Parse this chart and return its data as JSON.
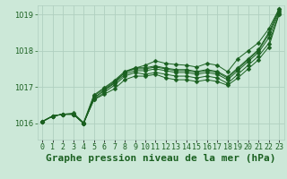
{
  "background_color": "#cce8d8",
  "grid_color": "#b0cfc0",
  "line_color": "#1a6020",
  "xlabel": "Graphe pression niveau de la mer (hPa)",
  "ylim": [
    1015.55,
    1019.25
  ],
  "xlim": [
    -0.5,
    23.5
  ],
  "yticks": [
    1016,
    1017,
    1018,
    1019
  ],
  "xticks": [
    0,
    1,
    2,
    3,
    4,
    5,
    6,
    7,
    8,
    9,
    10,
    11,
    12,
    13,
    14,
    15,
    16,
    17,
    18,
    19,
    20,
    21,
    22,
    23
  ],
  "series": [
    [
      1016.05,
      1016.2,
      1016.25,
      1016.25,
      1016.0,
      1016.65,
      1016.8,
      1016.95,
      1017.2,
      1017.3,
      1017.3,
      1017.35,
      1017.25,
      1017.2,
      1017.2,
      1017.15,
      1017.2,
      1017.15,
      1017.05,
      1017.25,
      1017.5,
      1017.75,
      1018.1,
      1019.0
    ],
    [
      1016.05,
      1016.2,
      1016.25,
      1016.25,
      1016.0,
      1016.65,
      1016.85,
      1017.05,
      1017.3,
      1017.4,
      1017.35,
      1017.4,
      1017.35,
      1017.3,
      1017.3,
      1017.25,
      1017.3,
      1017.25,
      1017.1,
      1017.35,
      1017.6,
      1017.85,
      1018.2,
      1019.0
    ],
    [
      1016.05,
      1016.2,
      1016.25,
      1016.25,
      1016.0,
      1016.7,
      1016.9,
      1017.1,
      1017.35,
      1017.45,
      1017.45,
      1017.5,
      1017.45,
      1017.4,
      1017.4,
      1017.35,
      1017.4,
      1017.35,
      1017.2,
      1017.45,
      1017.7,
      1017.95,
      1018.35,
      1019.05
    ],
    [
      1016.05,
      1016.2,
      1016.25,
      1016.25,
      1016.0,
      1016.75,
      1016.95,
      1017.15,
      1017.4,
      1017.5,
      1017.5,
      1017.55,
      1017.5,
      1017.45,
      1017.45,
      1017.4,
      1017.45,
      1017.4,
      1017.25,
      1017.5,
      1017.75,
      1018.0,
      1018.45,
      1019.1
    ],
    [
      1016.05,
      1016.2,
      1016.25,
      1016.28,
      1016.02,
      1016.78,
      1016.98,
      1017.18,
      1017.43,
      1017.53,
      1017.53,
      1017.58,
      1017.52,
      1017.48,
      1017.48,
      1017.43,
      1017.48,
      1017.43,
      1017.28,
      1017.53,
      1017.78,
      1018.03,
      1018.5,
      1019.15
    ]
  ],
  "series_top": [
    1016.05,
    1016.2,
    1016.25,
    1016.25,
    1016.0,
    1016.68,
    1016.92,
    1017.12,
    1017.4,
    1017.52,
    1017.6,
    1017.72,
    1017.65,
    1017.62,
    1017.6,
    1017.55,
    1017.65,
    1017.6,
    1017.42,
    1017.78,
    1018.0,
    1018.22,
    1018.6,
    1019.15
  ],
  "tick_fontsize": 6,
  "label_fontsize": 8
}
